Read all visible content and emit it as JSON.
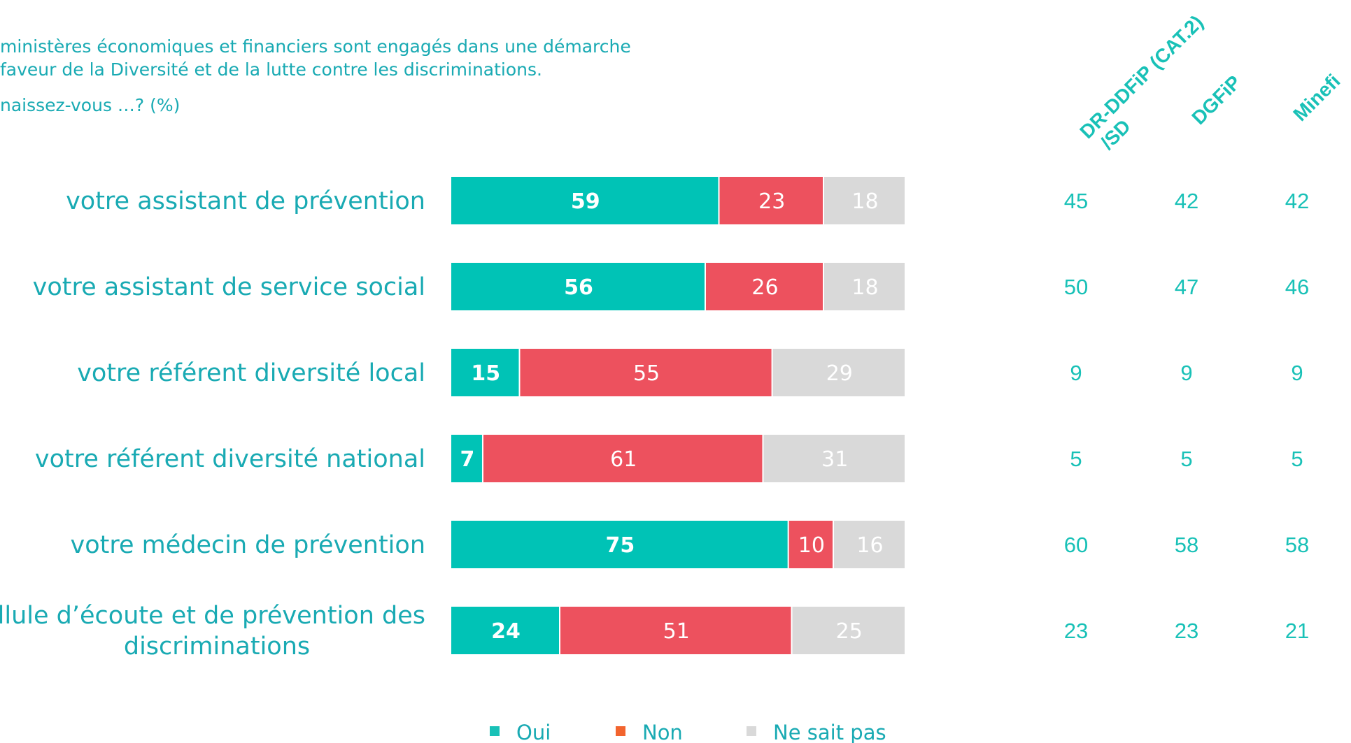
{
  "intro": {
    "line1": "ministères économiques et financiers sont engagés dans une démarche",
    "line2": "faveur de la Diversité et de la lutte contre les discriminations.",
    "question": "naissez-vous …? (%)"
  },
  "colors": {
    "oui": "#00c3b6",
    "non": "#ed515e",
    "nsp": "#d9d9d9",
    "text": "#19aab3"
  },
  "chart_data": {
    "type": "bar",
    "orientation": "horizontal",
    "stacked": true,
    "percent": true,
    "categories": [
      [
        "votre assistant de prévention"
      ],
      [
        "votre assistant de service social"
      ],
      [
        "votre référent diversité local"
      ],
      [
        "votre référent diversité national"
      ],
      [
        "votre médecin de prévention"
      ],
      [
        "la cellule d’écoute et de prévention des",
        "discriminations"
      ]
    ],
    "series": [
      {
        "name": "Oui",
        "values": [
          59,
          56,
          15,
          7,
          75,
          24
        ]
      },
      {
        "name": "Non",
        "values": [
          23,
          26,
          55,
          61,
          10,
          51
        ]
      },
      {
        "name": "Ne sait pas",
        "values": [
          18,
          18,
          29,
          31,
          16,
          25
        ]
      }
    ],
    "legend_position": "bottom",
    "legend_marker_colors": [
      "#19c1b7",
      "#f2642e",
      "#d9d9d9"
    ],
    "comparison": {
      "headers": [
        [
          "DR-DDFiP (CAT.2)",
          "/SD"
        ],
        [
          "DGFiP"
        ],
        [
          "Minefi"
        ]
      ],
      "rows": [
        [
          45,
          42,
          42
        ],
        [
          50,
          47,
          46
        ],
        [
          9,
          9,
          9
        ],
        [
          5,
          5,
          5
        ],
        [
          60,
          58,
          58
        ],
        [
          23,
          23,
          21
        ]
      ]
    }
  }
}
